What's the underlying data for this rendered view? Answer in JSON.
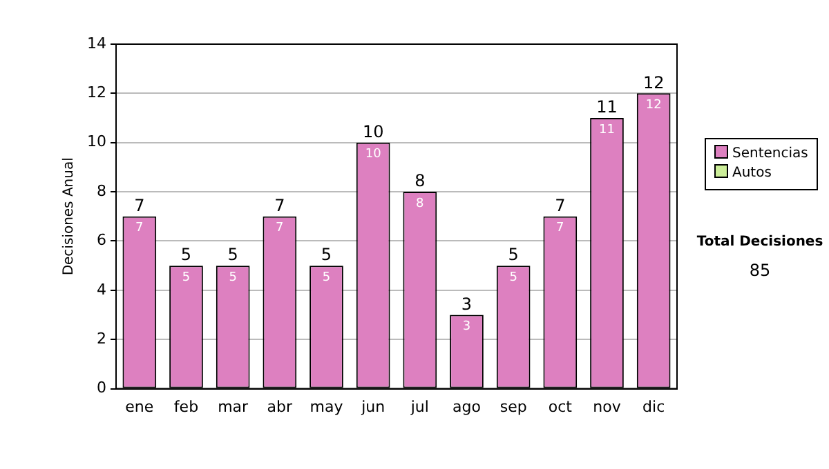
{
  "chart_data": {
    "type": "bar",
    "stacked": true,
    "ylabel": "Decisiones Anual",
    "categories": [
      "ene",
      "feb",
      "mar",
      "abr",
      "may",
      "jun",
      "jul",
      "ago",
      "sep",
      "oct",
      "nov",
      "dic"
    ],
    "series": [
      {
        "name": "Sentencias",
        "color": "#dd80c0",
        "values": [
          7,
          5,
          5,
          7,
          5,
          10,
          8,
          3,
          5,
          7,
          11,
          12
        ],
        "value_labels": [
          "7",
          "5",
          "5",
          "7",
          "5",
          "10",
          "8",
          "3",
          "5",
          "7",
          "11",
          "12"
        ]
      },
      {
        "name": "Autos",
        "color": "#ccee99",
        "values": [
          0,
          0,
          0,
          0,
          0,
          0,
          0,
          0,
          0,
          0,
          0,
          0
        ]
      }
    ],
    "ylim": [
      0,
      14
    ],
    "yticks": [
      0,
      2,
      4,
      6,
      8,
      10,
      12,
      14
    ],
    "grid": "y",
    "legend": "right",
    "totals": [
      "7",
      "5",
      "5",
      "7",
      "5",
      "10",
      "8",
      "3",
      "5",
      "7",
      "11",
      "12"
    ],
    "annotations": [
      "Total Decisiones",
      "85"
    ]
  }
}
